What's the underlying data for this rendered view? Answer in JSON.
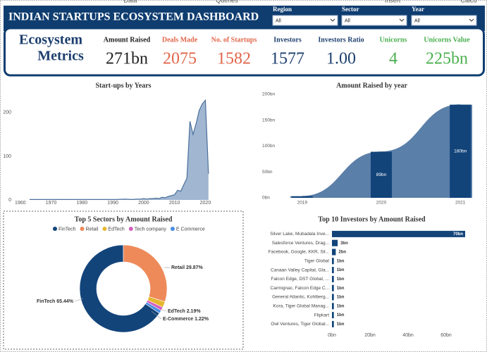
{
  "header": {
    "title": "INDIAN STARTUPS ECOSYSTEM DASHBOARD",
    "ribbon": [
      "Data",
      "Queries",
      "Insert",
      "Calcu"
    ]
  },
  "filters": [
    {
      "label": "Region",
      "value": "All"
    },
    {
      "label": "Sector",
      "value": "All"
    },
    {
      "label": "Year",
      "value": "All"
    }
  ],
  "metrics": {
    "title_lines": [
      "Ecosystem",
      "Metrics"
    ],
    "kpis": [
      {
        "label": "Amount Raised",
        "value": "271bn",
        "color": "#222222"
      },
      {
        "label": "Deals Made",
        "value": "2075",
        "color": "#e0664a"
      },
      {
        "label": "No. of Startups",
        "value": "1582",
        "color": "#e0664a"
      },
      {
        "label": "Investors",
        "value": "1577",
        "color": "#1d3f6e"
      },
      {
        "label": "Investors Ratio",
        "value": "1.00",
        "color": "#1d3f6e"
      },
      {
        "label": "Unicorns",
        "value": "4",
        "color": "#4caf50"
      },
      {
        "label": "Unicorns Value",
        "value": "225bn",
        "color": "#4caf50"
      }
    ]
  },
  "chart_data": [
    {
      "type": "area",
      "title": "Start-ups by Years",
      "x": [
        1963,
        1970,
        1975,
        1978,
        1984,
        1989,
        1991,
        1994,
        1996,
        1998,
        1999,
        2000,
        2001,
        2002,
        2003,
        2004,
        2005,
        2006,
        2007,
        2008,
        2009,
        2010,
        2011,
        2012,
        2013,
        2014,
        2015,
        2016,
        2017,
        2018,
        2019,
        2020,
        2021
      ],
      "values": [
        1,
        1,
        1,
        1,
        1,
        1,
        1,
        2,
        1,
        2,
        2,
        3,
        2,
        3,
        3,
        4,
        3,
        6,
        5,
        8,
        10,
        12,
        22,
        20,
        35,
        50,
        180,
        150,
        175,
        205,
        220,
        228,
        60
      ],
      "color": "#8fa9c9",
      "line_color": "#4a6f9c",
      "xlim": [
        1958,
        2021.5
      ],
      "xticks": [
        1960,
        1970,
        1980,
        1990,
        2000,
        2010,
        2020
      ],
      "ylim": [
        0,
        240
      ],
      "yticks": [
        0,
        100,
        200
      ]
    },
    {
      "type": "combo",
      "title": "Amount Raised by year",
      "x": [
        2019,
        2020,
        2021
      ],
      "values": [
        3,
        89,
        180
      ],
      "value_labels": [
        null,
        "89bn",
        "180bn"
      ],
      "color": "#5a7fa8",
      "column_color": "#12447a",
      "xlim": [
        2018.85,
        2021.15
      ],
      "xticks": [
        2019,
        2020,
        2021
      ],
      "ylim": [
        0,
        200
      ],
      "yticks": [
        {
          "value": 0,
          "label": "0bn"
        },
        {
          "value": 50,
          "label": "50bn"
        },
        {
          "value": 100,
          "label": "100bn"
        },
        {
          "value": 150,
          "label": "150bn"
        },
        {
          "value": 200,
          "label": "200bn"
        }
      ]
    },
    {
      "type": "donut",
      "title": "Top 5 Sectors by Amount Raised",
      "categories": [
        "FinTech",
        "Retail",
        "EdTech",
        "Tech company",
        "E Commerce"
      ],
      "values": [
        65.44,
        29.87,
        2.19,
        1.28,
        1.22
      ],
      "value_labels": [
        "FinTech 65.44%",
        "Retail 29.87%",
        "EdTech 2.19%",
        null,
        "E-Commerce 1.22%"
      ],
      "colors": [
        "#12447a",
        "#ee8a5a",
        "#e6b82e",
        "#d45fbf",
        "#4a8de0"
      ]
    },
    {
      "type": "bar",
      "orientation": "horizontal",
      "title": "Top 10 Investors by Amount Raised",
      "categories": [
        "Silver Lake, Mubadala Inve...",
        "Salesforce Ventures, Drag...",
        "Facebook, Google, KKR, Sil...",
        "Tiger Global",
        "Canaan Valley Capital, Gla...",
        "Falcon Edge, DST Global, ...",
        "Carmignac, Falcon Edge C...",
        "General Atlantic, Kohlberg...",
        "Kora, Tiger Global Manag...",
        "Flipkart",
        "Owl Ventures, Tiger Global..."
      ],
      "values": [
        70,
        3,
        2,
        1,
        1,
        1,
        1,
        1,
        1,
        1,
        1
      ],
      "value_labels": [
        "70bn",
        "3bn",
        "2bn",
        "1bn",
        "1bn",
        "1bn",
        "1bn",
        "1bn",
        "1bn",
        "1bn",
        "1bn"
      ],
      "color": "#12447a",
      "xlim": [
        0,
        70
      ],
      "xticks": [
        {
          "value": 0,
          "label": "0bn"
        },
        {
          "value": 20,
          "label": "20bn"
        },
        {
          "value": 40,
          "label": "40bn"
        },
        {
          "value": 60,
          "label": "60bn"
        }
      ]
    }
  ]
}
